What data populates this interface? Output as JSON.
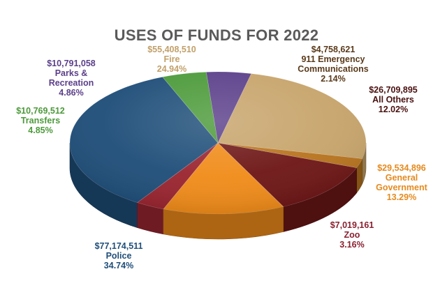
{
  "chart_data": {
    "type": "pie",
    "title": "USES OF FUNDS FOR 2022",
    "slices": [
      {
        "name": "Fire",
        "amount": "$55,408,510",
        "percent_label": "24.94%",
        "value": 24.94,
        "color": "#c7a46b",
        "label_color": "#c2a06a"
      },
      {
        "name": "911 Emergency Communications",
        "line1": "911 Emergency",
        "line2": "Communications",
        "amount": "$4,758,621",
        "percent_label": "2.14%",
        "value": 2.14,
        "color": "#b8741f",
        "label_color": "#5a3a1a"
      },
      {
        "name": "All Others",
        "amount": "$26,709,895",
        "percent_label": "12.02%",
        "value": 12.02,
        "color": "#6e1616",
        "label_color": "#4a1010"
      },
      {
        "name": "General Government",
        "line1": "General",
        "line2": "Government",
        "amount": "$29,534,896",
        "percent_label": "13.29%",
        "value": 13.29,
        "color": "#f08c1a",
        "label_color": "#e58a1e"
      },
      {
        "name": "Zoo",
        "amount": "$7,019,161",
        "percent_label": "3.16%",
        "value": 3.16,
        "color": "#9a2530",
        "label_color": "#8a2030"
      },
      {
        "name": "Police",
        "amount": "$77,174,511",
        "percent_label": "34.74%",
        "value": 34.74,
        "color": "#1f4e79",
        "label_color": "#1f4e79"
      },
      {
        "name": "Transfers",
        "amount": "$10,769,512",
        "percent_label": "4.85%",
        "value": 4.85,
        "color": "#4c9a3a",
        "label_color": "#4c9a3a"
      },
      {
        "name": "Parks & Recreation",
        "line1": "Parks &",
        "line2": "Recreation",
        "amount": "$10,791,058",
        "percent_label": "4.86%",
        "value": 4.86,
        "color": "#5b3f8a",
        "label_color": "#5b3f8a"
      }
    ]
  }
}
